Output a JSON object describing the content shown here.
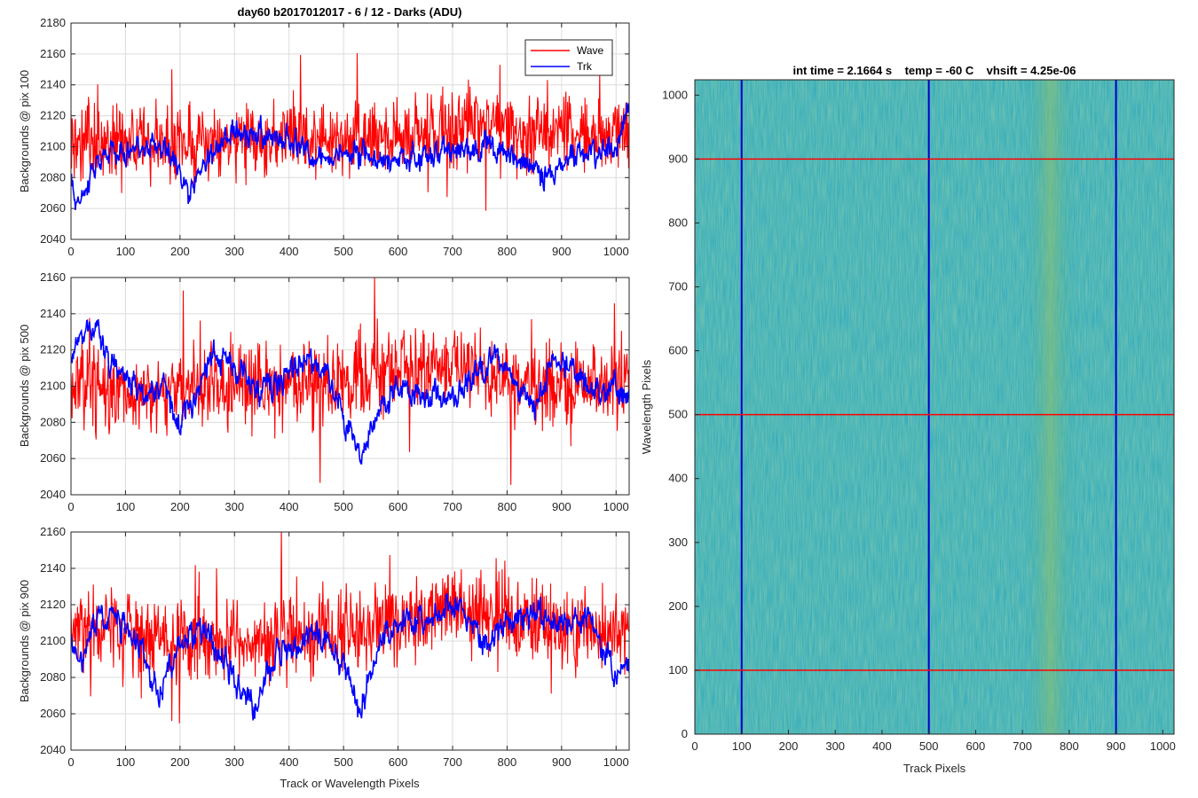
{
  "chart_data": [
    {
      "type": "line",
      "title": "day60 b2017012017 - 6 / 12 - Darks (ADU)",
      "ylabel": "Backgrounds @ pix 100",
      "xlabel": "",
      "xlim": [
        0,
        1024
      ],
      "ylim": [
        2040,
        2180
      ],
      "xticks": [
        "0",
        "100",
        "200",
        "300",
        "400",
        "500",
        "600",
        "700",
        "800",
        "900",
        "1000"
      ],
      "yticks": [
        "2040",
        "2060",
        "2080",
        "2100",
        "2120",
        "2140",
        "2160",
        "2180"
      ],
      "grid": true,
      "legend": {
        "placement": "top-right",
        "entries": [
          "Wave",
          "Trk"
        ]
      },
      "series": [
        {
          "name": "Wave",
          "color": "#ff0000",
          "mean": 2105,
          "noise": 24,
          "spikes": 20,
          "anchors": [
            [
              0,
              2104
            ],
            [
              100,
              2103
            ],
            [
              200,
              2100
            ],
            [
              300,
              2104
            ],
            [
              400,
              2108
            ],
            [
              500,
              2103
            ],
            [
              600,
              2107
            ],
            [
              700,
              2110
            ],
            [
              750,
              2118
            ],
            [
              800,
              2110
            ],
            [
              900,
              2108
            ],
            [
              1024,
              2110
            ]
          ]
        },
        {
          "name": "Trk",
          "color": "#0000ff",
          "noise": 9,
          "anchors": [
            [
              0,
              2075
            ],
            [
              15,
              2062
            ],
            [
              40,
              2085
            ],
            [
              70,
              2098
            ],
            [
              100,
              2095
            ],
            [
              150,
              2105
            ],
            [
              180,
              2098
            ],
            [
              215,
              2070
            ],
            [
              240,
              2085
            ],
            [
              275,
              2103
            ],
            [
              300,
              2110
            ],
            [
              340,
              2108
            ],
            [
              400,
              2105
            ],
            [
              440,
              2095
            ],
            [
              470,
              2092
            ],
            [
              500,
              2098
            ],
            [
              550,
              2092
            ],
            [
              600,
              2090
            ],
            [
              650,
              2095
            ],
            [
              700,
              2098
            ],
            [
              760,
              2100
            ],
            [
              800,
              2095
            ],
            [
              830,
              2090
            ],
            [
              880,
              2080
            ],
            [
              920,
              2098
            ],
            [
              960,
              2095
            ],
            [
              1000,
              2100
            ],
            [
              1024,
              2128
            ]
          ]
        }
      ]
    },
    {
      "type": "line",
      "title": "",
      "ylabel": "Backgrounds @ pix 500",
      "xlabel": "",
      "xlim": [
        0,
        1024
      ],
      "ylim": [
        2040,
        2160
      ],
      "xticks": [
        "0",
        "100",
        "200",
        "300",
        "400",
        "500",
        "600",
        "700",
        "800",
        "900",
        "1000"
      ],
      "yticks": [
        "2040",
        "2060",
        "2080",
        "2100",
        "2120",
        "2140",
        "2160"
      ],
      "grid": true,
      "series": [
        {
          "name": "Wave",
          "color": "#ff0000",
          "mean": 2100,
          "noise": 22,
          "spikes": 16,
          "anchors": [
            [
              0,
              2100
            ],
            [
              100,
              2098
            ],
            [
              200,
              2098
            ],
            [
              300,
              2100
            ],
            [
              400,
              2100
            ],
            [
              500,
              2102
            ],
            [
              600,
              2110
            ],
            [
              700,
              2112
            ],
            [
              800,
              2105
            ],
            [
              900,
              2098
            ],
            [
              1024,
              2103
            ]
          ]
        },
        {
          "name": "Trk",
          "color": "#0000ff",
          "noise": 8,
          "anchors": [
            [
              0,
              2108
            ],
            [
              20,
              2130
            ],
            [
              40,
              2135
            ],
            [
              70,
              2115
            ],
            [
              100,
              2108
            ],
            [
              130,
              2095
            ],
            [
              170,
              2100
            ],
            [
              200,
              2080
            ],
            [
              230,
              2095
            ],
            [
              260,
              2118
            ],
            [
              300,
              2112
            ],
            [
              340,
              2098
            ],
            [
              380,
              2102
            ],
            [
              430,
              2118
            ],
            [
              470,
              2105
            ],
            [
              500,
              2082
            ],
            [
              530,
              2060
            ],
            [
              560,
              2085
            ],
            [
              600,
              2098
            ],
            [
              650,
              2095
            ],
            [
              700,
              2092
            ],
            [
              740,
              2105
            ],
            [
              780,
              2118
            ],
            [
              820,
              2098
            ],
            [
              850,
              2088
            ],
            [
              890,
              2118
            ],
            [
              920,
              2110
            ],
            [
              960,
              2095
            ],
            [
              1000,
              2098
            ],
            [
              1024,
              2095
            ]
          ]
        }
      ]
    },
    {
      "type": "line",
      "title": "",
      "ylabel": "Backgrounds @ pix 900",
      "xlabel": "Track or Wavelength Pixels",
      "xlim": [
        0,
        1024
      ],
      "ylim": [
        2040,
        2160
      ],
      "xticks": [
        "0",
        "100",
        "200",
        "300",
        "400",
        "500",
        "600",
        "700",
        "800",
        "900",
        "1000"
      ],
      "yticks": [
        "2040",
        "2060",
        "2080",
        "2100",
        "2120",
        "2140",
        "2160"
      ],
      "grid": true,
      "series": [
        {
          "name": "Wave",
          "color": "#ff0000",
          "mean": 2105,
          "noise": 22,
          "spikes": 16,
          "anchors": [
            [
              0,
              2105
            ],
            [
              100,
              2105
            ],
            [
              200,
              2100
            ],
            [
              300,
              2100
            ],
            [
              400,
              2100
            ],
            [
              500,
              2105
            ],
            [
              600,
              2110
            ],
            [
              700,
              2118
            ],
            [
              800,
              2115
            ],
            [
              900,
              2105
            ],
            [
              1024,
              2108
            ]
          ]
        },
        {
          "name": "Trk",
          "color": "#0000ff",
          "noise": 8,
          "anchors": [
            [
              0,
              2100
            ],
            [
              20,
              2085
            ],
            [
              50,
              2115
            ],
            [
              100,
              2108
            ],
            [
              130,
              2095
            ],
            [
              160,
              2070
            ],
            [
              200,
              2095
            ],
            [
              230,
              2105
            ],
            [
              260,
              2100
            ],
            [
              300,
              2078
            ],
            [
              340,
              2062
            ],
            [
              380,
              2095
            ],
            [
              430,
              2102
            ],
            [
              470,
              2100
            ],
            [
              500,
              2085
            ],
            [
              530,
              2060
            ],
            [
              560,
              2095
            ],
            [
              600,
              2110
            ],
            [
              650,
              2112
            ],
            [
              700,
              2120
            ],
            [
              730,
              2115
            ],
            [
              760,
              2098
            ],
            [
              800,
              2108
            ],
            [
              850,
              2115
            ],
            [
              900,
              2110
            ],
            [
              950,
              2112
            ],
            [
              980,
              2095
            ],
            [
              1000,
              2080
            ],
            [
              1024,
              2085
            ]
          ]
        }
      ]
    },
    {
      "type": "heatmap",
      "title": "int time = 2.1664 s    temp = -60 C    vhsift = 4.25e-06",
      "xlabel": "Track Pixels",
      "ylabel": "Wavelength Pixels",
      "xlim": [
        0,
        1024
      ],
      "ylim": [
        0,
        1024
      ],
      "xticks": [
        "0",
        "100",
        "200",
        "300",
        "400",
        "500",
        "600",
        "700",
        "800",
        "900",
        "1000"
      ],
      "yticks": [
        "0",
        "100",
        "200",
        "300",
        "400",
        "500",
        "600",
        "700",
        "800",
        "900",
        "1000"
      ],
      "colormap": "parula",
      "base_color": "#2aa9b8",
      "warm_band": {
        "x_range": [
          700,
          820
        ],
        "color": "#8ec06a"
      },
      "vertical_markers": {
        "x": [
          100,
          500,
          900
        ],
        "color": "#0000cc"
      },
      "horizontal_markers": {
        "y": [
          100,
          500,
          900
        ],
        "color": "#ff0000"
      }
    }
  ]
}
